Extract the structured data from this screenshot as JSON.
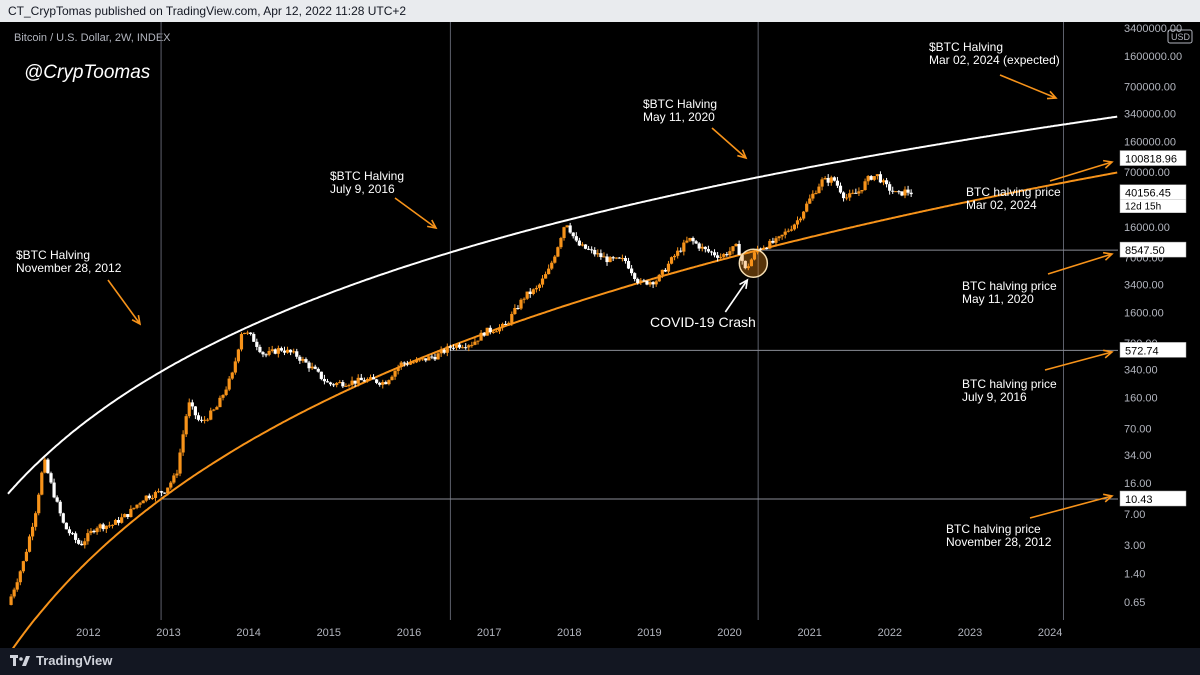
{
  "header": {
    "publisher": "CT_CrypTomas published on TradingView.com, Apr 12, 2022 11:28 UTC+2"
  },
  "symbol_title": "Bitcoin / U.S. Dollar, 2W, INDEX",
  "watermark": "@CrypToomas",
  "currency_badge": "USD",
  "footer": {
    "logo": "TradingView"
  },
  "colors": {
    "bg": "#000000",
    "accent": "#f7931a",
    "up_candle": "#f7931a",
    "down_candle": "#ffffff",
    "upper_curve": "#ffffff",
    "lower_curve": "#f7931a",
    "axis_text": "#b2b5be",
    "vline": "#5d606b"
  },
  "chart_data": {
    "type": "candlestick",
    "title": "Bitcoin / U.S. Dollar, 2W, INDEX",
    "yscale": "log",
    "ylim": [
      0.4,
      4000000
    ],
    "xlim": [
      2011.0,
      2024.85
    ],
    "x_ticks": [
      "2012",
      "2013",
      "2014",
      "2015",
      "2016",
      "2017",
      "2018",
      "2019",
      "2020",
      "2021",
      "2022",
      "2023",
      "2024"
    ],
    "y_ticks": [
      "3400000.00",
      "1600000.00",
      "700000.00",
      "340000.00",
      "160000.00",
      "70000.00",
      "16000.00",
      "7000.00",
      "3400.00",
      "1600.00",
      "700.00",
      "340.00",
      "160.00",
      "70.00",
      "34.00",
      "16.00",
      "7.00",
      "3.00",
      "1.40",
      "0.65"
    ],
    "price_labels": [
      {
        "value": "100818.96",
        "price": 100818.96
      },
      {
        "value": "40156.45",
        "price": 40156.45,
        "sub": "12d 15h"
      },
      {
        "value": "8547.50",
        "price": 8547.5
      },
      {
        "value": "572.74",
        "price": 572.74
      },
      {
        "value": "10.43",
        "price": 10.43
      }
    ],
    "halvings": [
      {
        "date": "2012-11-28",
        "t": 2012.91,
        "title": "$BTC Halving",
        "date_label": "November 28, 2012",
        "price_label_line1": "BTC halving price",
        "price_label_line2": "November 28, 2012",
        "price": 10.43
      },
      {
        "date": "2016-07-09",
        "t": 2016.52,
        "title": "$BTC Halving",
        "date_label": "July 9, 2016",
        "price_label_line1": "BTC halving price",
        "price_label_line2": "July 9, 2016",
        "price": 572.74
      },
      {
        "date": "2020-05-11",
        "t": 2020.36,
        "title": "$BTC Halving",
        "date_label": "May 11, 2020",
        "price_label_line1": "BTC halving price",
        "price_label_line2": "May 11, 2020",
        "price": 8547.5
      },
      {
        "date": "2024-03-02",
        "t": 2024.17,
        "title": "$BTC Halving",
        "date_label": "Mar 02, 2024 (expected)",
        "price_label_line1": "BTC halving price",
        "price_label_line2": "Mar 02, 2024",
        "price": 100818.96
      }
    ],
    "annotation": {
      "label": "COVID-19 Crash",
      "t": 2020.2,
      "price": 5000
    },
    "price_path": [
      [
        2011.0,
        0.6
      ],
      [
        2011.2,
        2.0
      ],
      [
        2011.35,
        8
      ],
      [
        2011.45,
        30
      ],
      [
        2011.55,
        14
      ],
      [
        2011.7,
        5
      ],
      [
        2011.9,
        3
      ],
      [
        2012.1,
        5
      ],
      [
        2012.3,
        5.2
      ],
      [
        2012.5,
        7
      ],
      [
        2012.7,
        11
      ],
      [
        2012.95,
        13
      ],
      [
        2013.1,
        20
      ],
      [
        2013.25,
        140
      ],
      [
        2013.4,
        80
      ],
      [
        2013.6,
        120
      ],
      [
        2013.8,
        300
      ],
      [
        2013.92,
        1000
      ],
      [
        2014.05,
        800
      ],
      [
        2014.2,
        500
      ],
      [
        2014.4,
        600
      ],
      [
        2014.6,
        500
      ],
      [
        2014.8,
        350
      ],
      [
        2015.0,
        230
      ],
      [
        2015.2,
        240
      ],
      [
        2015.5,
        260
      ],
      [
        2015.7,
        240
      ],
      [
        2015.9,
        400
      ],
      [
        2016.1,
        420
      ],
      [
        2016.35,
        500
      ],
      [
        2016.55,
        650
      ],
      [
        2016.8,
        700
      ],
      [
        2016.95,
        950
      ],
      [
        2017.2,
        1100
      ],
      [
        2017.45,
        2500
      ],
      [
        2017.6,
        3000
      ],
      [
        2017.75,
        5000
      ],
      [
        2017.85,
        9000
      ],
      [
        2017.96,
        19000
      ],
      [
        2018.1,
        10000
      ],
      [
        2018.3,
        8000
      ],
      [
        2018.5,
        6500
      ],
      [
        2018.7,
        6500
      ],
      [
        2018.88,
        3500
      ],
      [
        2019.1,
        3800
      ],
      [
        2019.3,
        7000
      ],
      [
        2019.5,
        11500
      ],
      [
        2019.7,
        8500
      ],
      [
        2019.9,
        7200
      ],
      [
        2020.1,
        9500
      ],
      [
        2020.2,
        5000
      ],
      [
        2020.35,
        8800
      ],
      [
        2020.6,
        11000
      ],
      [
        2020.85,
        19000
      ],
      [
        2021.0,
        33000
      ],
      [
        2021.15,
        55000
      ],
      [
        2021.3,
        58000
      ],
      [
        2021.45,
        35000
      ],
      [
        2021.6,
        40000
      ],
      [
        2021.75,
        61000
      ],
      [
        2021.85,
        64000
      ],
      [
        2021.95,
        48000
      ],
      [
        2022.1,
        38000
      ],
      [
        2022.2,
        42000
      ],
      [
        2022.28,
        40156
      ]
    ]
  }
}
